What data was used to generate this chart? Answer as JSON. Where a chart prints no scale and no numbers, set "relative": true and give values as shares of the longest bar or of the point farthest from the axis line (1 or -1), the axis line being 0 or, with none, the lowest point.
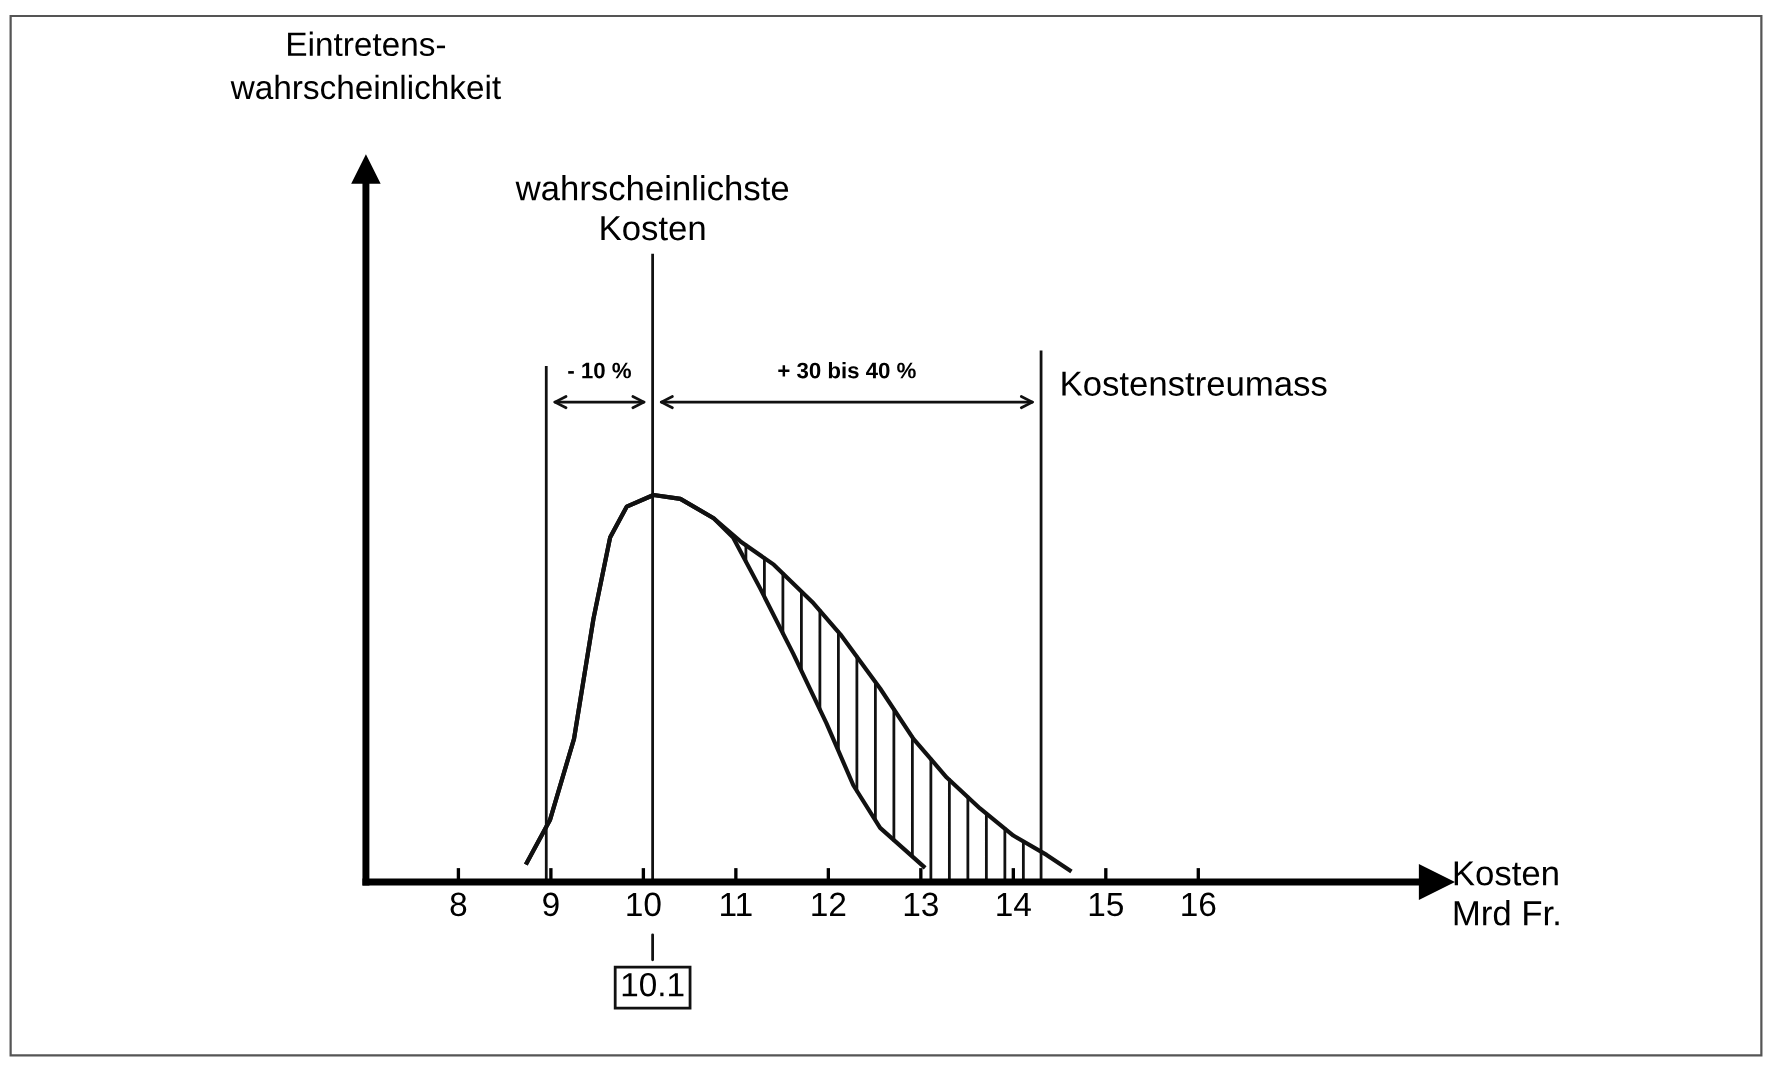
{
  "chart_data": {
    "type": "line",
    "relative": true,
    "xlabel": "Kosten\nMrd Fr.",
    "xlim": [
      7,
      18.4
    ],
    "xticks": [
      8,
      9,
      10,
      11,
      12,
      13,
      14,
      15,
      16
    ],
    "grid": false,
    "marker": "none",
    "line_style": "solid",
    "series": [
      {
        "color": "#111111",
        "x": [
          8.74,
          8.99,
          9.25,
          9.46,
          9.64,
          9.82,
          10.11,
          10.4,
          10.76,
          11.05,
          11.41,
          11.84,
          12.13,
          12.56,
          12.92,
          13.28,
          13.64,
          14.0,
          14.36,
          14.61
        ],
        "values": [
          0.05,
          0.16,
          0.37,
          0.68,
          0.89,
          0.97,
          1.0,
          0.99,
          0.94,
          0.88,
          0.82,
          0.72,
          0.64,
          0.5,
          0.37,
          0.27,
          0.19,
          0.12,
          0.07,
          0.03
        ]
      },
      {
        "color": "#111111",
        "x": [
          8.74,
          8.99,
          9.25,
          9.46,
          9.64,
          9.82,
          10.11,
          10.4,
          10.76,
          10.97,
          11.26,
          11.62,
          11.98,
          12.27,
          12.56,
          13.03
        ],
        "values": [
          0.05,
          0.16,
          0.37,
          0.68,
          0.89,
          0.97,
          1.0,
          0.99,
          0.94,
          0.89,
          0.76,
          0.59,
          0.41,
          0.25,
          0.14,
          0.04
        ]
      }
    ],
    "ref_lines": [
      {
        "axis": "x",
        "value": 8.95,
        "label": null
      },
      {
        "axis": "x",
        "value": 10.1,
        "label": "wahrscheinlichste\nKosten"
      },
      {
        "axis": "x",
        "value": 14.3,
        "label": "Kostenstreumass"
      }
    ],
    "annotations": [
      "- 10 %",
      "+ 30 bis 40 %",
      "Eintretens-\nwahrscheinlichkeit",
      {
        "text": "10.1",
        "x": 10.1,
        "y": 0
      }
    ]
  }
}
